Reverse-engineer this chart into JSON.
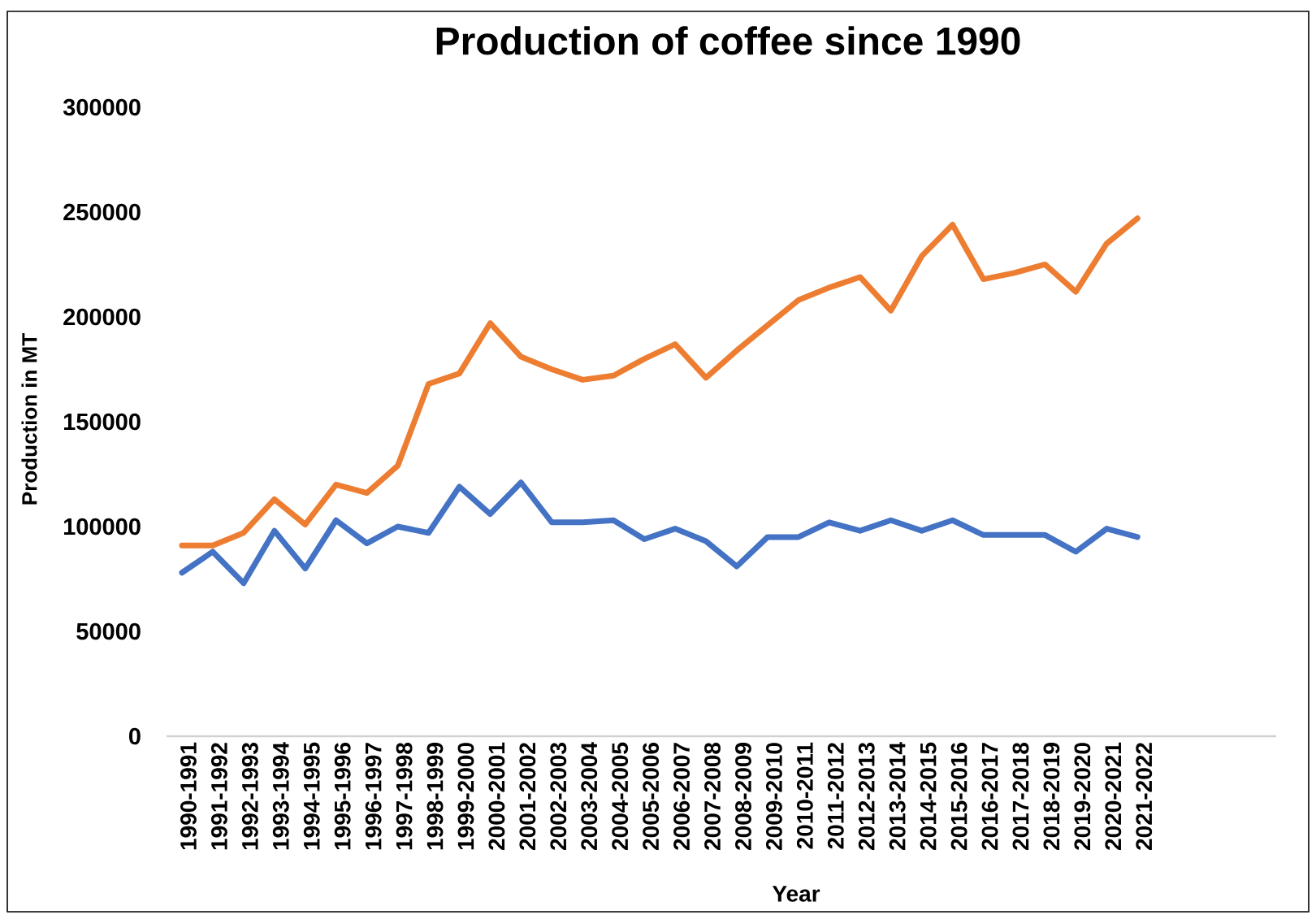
{
  "chart_data": {
    "type": "line",
    "title": "Production of coffee since 1990",
    "xlabel": "Year",
    "ylabel": "Production in MT",
    "categories": [
      "1990-1991",
      "1991-1992",
      "1992-1993",
      "1993-1994",
      "1994-1995",
      "1995-1996",
      "1996-1997",
      "1997-1998",
      "1998-1999",
      "1999-2000",
      "2000-2001",
      "2001-2002",
      "2002-2003",
      "2003-2004",
      "2004-2005",
      "2005-2006",
      "2006-2007",
      "2007-2008",
      "2008-2009",
      "2009-2010",
      "2010-2011",
      "2011-2012",
      "2012-2013",
      "2013-2014",
      "2014-2015",
      "2015-2016",
      "2016-2017",
      "2017-2018",
      "2018-2019",
      "2019-2020",
      "2020-2021",
      "2021-2022"
    ],
    "series": [
      {
        "color": "#4472c4",
        "values": [
          78000,
          88000,
          73000,
          98000,
          80000,
          103000,
          92000,
          100000,
          97000,
          119000,
          106000,
          121000,
          102000,
          102000,
          103000,
          94000,
          99000,
          93000,
          81000,
          95000,
          95000,
          102000,
          98000,
          103000,
          98000,
          103000,
          96000,
          96000,
          96000,
          88000,
          99000,
          95000
        ]
      },
      {
        "color": "#ed7d31",
        "values": [
          91000,
          91000,
          97000,
          113000,
          101000,
          120000,
          116000,
          129000,
          168000,
          173000,
          197000,
          181000,
          175000,
          170000,
          172000,
          180000,
          187000,
          171000,
          184000,
          196000,
          208000,
          214000,
          219000,
          203000,
          229000,
          244000,
          218000,
          221000,
          225000,
          212000,
          235000,
          247000
        ]
      }
    ],
    "ylim": [
      0,
      300000
    ],
    "yticks": [
      0,
      50000,
      100000,
      150000,
      200000,
      250000,
      300000
    ]
  }
}
